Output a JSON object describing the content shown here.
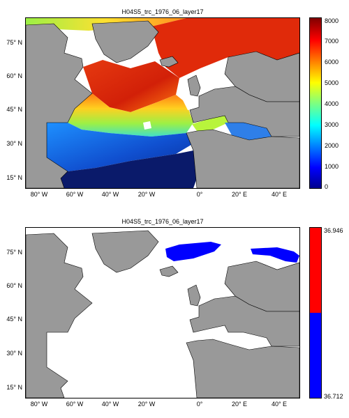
{
  "panels": [
    {
      "title": "H04S5_trc_1976_06_layer17",
      "colorbar": {
        "ticks": [
          "8000",
          "7000",
          "6000",
          "5000",
          "4000",
          "3000",
          "2000",
          "1000",
          "0"
        ],
        "range": [
          0,
          8000
        ],
        "colormap": "jet"
      },
      "lat_ticks": [
        "75° N",
        "60° N",
        "45° N",
        "30° N",
        "15° N"
      ],
      "lon_ticks": [
        "80° W",
        "60° W",
        "40° W",
        "20° W",
        "0°",
        "20° E",
        "40° E"
      ]
    },
    {
      "title": "H04S5_trc_1976_06_layer17",
      "colorbar": {
        "ticks": [
          "36.946",
          "36.712"
        ],
        "range": [
          36.712,
          36.946
        ],
        "colors": [
          "#ff0000",
          "#0000ff"
        ]
      },
      "lat_ticks": [
        "75° N",
        "60° N",
        "45° N",
        "30° N",
        "15° N"
      ],
      "lon_ticks": [
        "80° W",
        "60° W",
        "40° W",
        "20° W",
        "0°",
        "20° E",
        "40° E"
      ]
    }
  ],
  "colors": {
    "land": "#999999",
    "ocean_missing": "#ffffff",
    "highlight": "#0000ff"
  }
}
